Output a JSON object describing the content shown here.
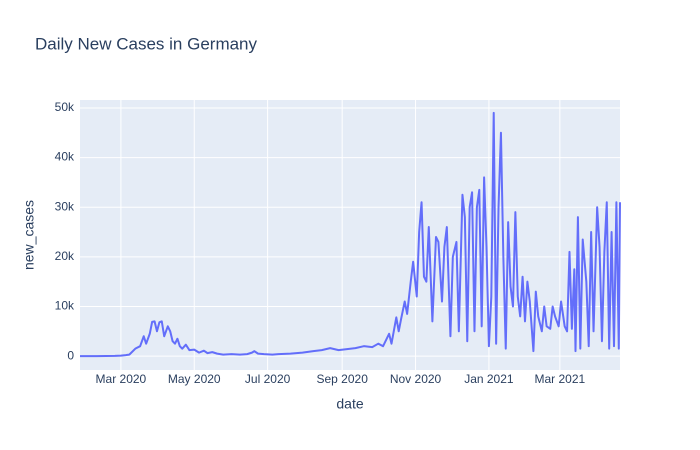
{
  "chart_data": {
    "type": "line",
    "title": "Daily New Cases in Germany",
    "x_label": "date",
    "y_label": "new_cases",
    "x": [
      "2020-01-27",
      "2020-02-10",
      "2020-02-25",
      "2020-03-01",
      "2020-03-05",
      "2020-03-08",
      "2020-03-13",
      "2020-03-17",
      "2020-03-20",
      "2020-03-22",
      "2020-03-25",
      "2020-03-27",
      "2020-03-29",
      "2020-03-31",
      "2020-04-02",
      "2020-04-04",
      "2020-04-06",
      "2020-04-09",
      "2020-04-11",
      "2020-04-13",
      "2020-04-15",
      "2020-04-17",
      "2020-04-19",
      "2020-04-21",
      "2020-04-24",
      "2020-04-27",
      "2020-05-01",
      "2020-05-05",
      "2020-05-09",
      "2020-05-12",
      "2020-05-16",
      "2020-05-20",
      "2020-05-25",
      "2020-06-01",
      "2020-06-08",
      "2020-06-14",
      "2020-06-18",
      "2020-06-20",
      "2020-06-23",
      "2020-06-28",
      "2020-07-05",
      "2020-07-10",
      "2020-07-20",
      "2020-07-30",
      "2020-08-08",
      "2020-08-15",
      "2020-08-22",
      "2020-08-29",
      "2020-09-05",
      "2020-09-12",
      "2020-09-19",
      "2020-09-26",
      "2020-10-01",
      "2020-10-05",
      "2020-10-10",
      "2020-10-12",
      "2020-10-16",
      "2020-10-18",
      "2020-10-20",
      "2020-10-23",
      "2020-10-25",
      "2020-10-28",
      "2020-10-30",
      "2020-11-02",
      "2020-11-04",
      "2020-11-06",
      "2020-11-08",
      "2020-11-10",
      "2020-11-12",
      "2020-11-15",
      "2020-11-18",
      "2020-11-20",
      "2020-11-23",
      "2020-11-25",
      "2020-11-27",
      "2020-11-30",
      "2020-12-02",
      "2020-12-05",
      "2020-12-07",
      "2020-12-10",
      "2020-12-12",
      "2020-12-14",
      "2020-12-16",
      "2020-12-18",
      "2020-12-20",
      "2020-12-22",
      "2020-12-24",
      "2020-12-26",
      "2020-12-28",
      "2020-12-30",
      "2021-01-01",
      "2021-01-03",
      "2021-01-05",
      "2021-01-07",
      "2021-01-09",
      "2021-01-11",
      "2021-01-13",
      "2021-01-15",
      "2021-01-17",
      "2021-01-19",
      "2021-01-21",
      "2021-01-23",
      "2021-01-25",
      "2021-01-27",
      "2021-01-29",
      "2021-01-31",
      "2021-02-02",
      "2021-02-04",
      "2021-02-07",
      "2021-02-09",
      "2021-02-11",
      "2021-02-14",
      "2021-02-16",
      "2021-02-18",
      "2021-02-21",
      "2021-02-23",
      "2021-02-25",
      "2021-02-28",
      "2021-03-02",
      "2021-03-05",
      "2021-03-07",
      "2021-03-09",
      "2021-03-11",
      "2021-03-13",
      "2021-03-14",
      "2021-03-16",
      "2021-03-18",
      "2021-03-20",
      "2021-03-23",
      "2021-03-25",
      "2021-03-27",
      "2021-03-29",
      "2021-04-01",
      "2021-04-03",
      "2021-04-05",
      "2021-04-07",
      "2021-04-09",
      "2021-04-11",
      "2021-04-13",
      "2021-04-15",
      "2021-04-17",
      "2021-04-19",
      "2021-04-20"
    ],
    "series": [
      {
        "name": "new_cases",
        "color": "#636efa",
        "values": [
          0,
          0,
          50,
          100,
          200,
          300,
          1500,
          2000,
          4000,
          2500,
          4500,
          6900,
          7000,
          5000,
          6800,
          7000,
          4000,
          6000,
          5000,
          3000,
          2500,
          3500,
          2000,
          1500,
          2300,
          1200,
          1300,
          700,
          1100,
          600,
          800,
          500,
          300,
          400,
          300,
          400,
          700,
          1000,
          500,
          400,
          300,
          400,
          500,
          700,
          1000,
          1200,
          1600,
          1200,
          1400,
          1600,
          2000,
          1800,
          2500,
          2000,
          4500,
          2500,
          7800,
          5000,
          7500,
          11000,
          8500,
          15000,
          19000,
          12000,
          25000,
          31000,
          16000,
          15000,
          26000,
          7000,
          24000,
          23000,
          11000,
          22000,
          26000,
          4000,
          20000,
          23000,
          5000,
          32500,
          28000,
          3000,
          30000,
          33000,
          5000,
          30000,
          33500,
          6000,
          36000,
          22000,
          2000,
          12000,
          49000,
          2500,
          30000,
          45000,
          20000,
          1500,
          27000,
          14000,
          10000,
          29000,
          12000,
          8000,
          16000,
          7000,
          15000,
          11000,
          1000,
          13000,
          8000,
          5000,
          10000,
          6000,
          5500,
          10000,
          8000,
          6000,
          11000,
          6000,
          5000,
          21000,
          5500,
          17500,
          1000,
          28000,
          1500,
          23500,
          15000,
          2000,
          25000,
          5000,
          30000,
          22000,
          3000,
          21000,
          31000,
          1500,
          25000,
          2000,
          31000,
          1500,
          31000
        ]
      }
    ],
    "xlim": [
      "2020-01-27",
      "2021-04-20"
    ],
    "xticks": [
      {
        "value": "2020-03-01",
        "label": "Mar 2020"
      },
      {
        "value": "2020-05-01",
        "label": "May 2020"
      },
      {
        "value": "2020-07-01",
        "label": "Jul 2020"
      },
      {
        "value": "2020-09-01",
        "label": "Sep 2020"
      },
      {
        "value": "2020-11-01",
        "label": "Nov 2020"
      },
      {
        "value": "2021-01-01",
        "label": "Jan 2021"
      },
      {
        "value": "2021-03-01",
        "label": "Mar 2021"
      }
    ],
    "ylim": [
      -2800,
      51600
    ],
    "yticks": [
      0,
      {
        "value": 10000,
        "label": "10k"
      },
      {
        "value": 20000,
        "label": "20k"
      },
      {
        "value": 30000,
        "label": "30k"
      },
      {
        "value": 40000,
        "label": "40k"
      },
      {
        "value": 50000,
        "label": "50k"
      }
    ],
    "grid": true
  }
}
